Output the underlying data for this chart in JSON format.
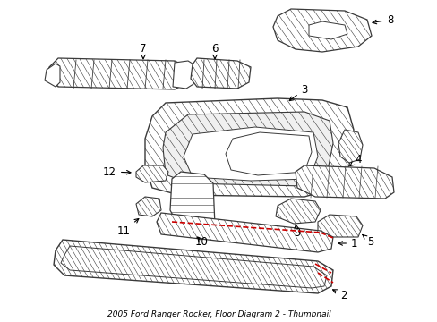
{
  "title": "2005 Ford Ranger Rocker, Floor Diagram 2 - Thumbnail",
  "bg_color": "#ffffff",
  "line_color": "#3a3a3a",
  "red_color": "#cc0000",
  "label_color": "#000000",
  "figsize": [
    4.89,
    3.6
  ],
  "dpi": 100
}
